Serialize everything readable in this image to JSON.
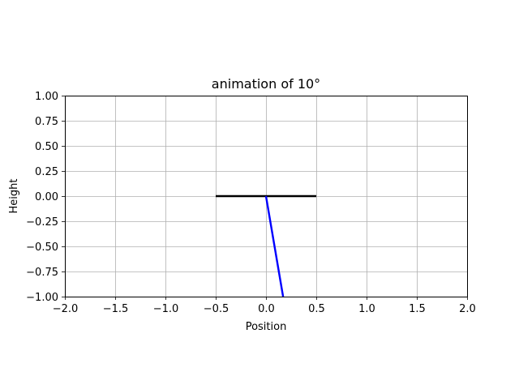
{
  "chart_data": {
    "type": "line",
    "title": "animation of 10°",
    "xlabel": "Position",
    "ylabel": "Height",
    "xlim": [
      -2.0,
      2.0
    ],
    "ylim": [
      -1.0,
      1.0
    ],
    "x_ticks": [
      -2.0,
      -1.5,
      -1.0,
      -0.5,
      0.0,
      0.5,
      1.0,
      1.5,
      2.0
    ],
    "x_tick_labels": [
      "−2.0",
      "−1.5",
      "−1.0",
      "−0.5",
      "0.0",
      "0.5",
      "1.0",
      "1.5",
      "2.0"
    ],
    "y_ticks": [
      1.0,
      0.75,
      0.5,
      0.25,
      0.0,
      -0.25,
      -0.5,
      -0.75,
      -1.0
    ],
    "y_tick_labels": [
      "1.00",
      "0.75",
      "0.50",
      "0.25",
      "0.00",
      "−0.25",
      "−0.50",
      "−0.75",
      "−1.00"
    ],
    "grid": true,
    "series": [
      {
        "color": "#000000",
        "x": [
          -0.5,
          0.5
        ],
        "y": [
          0.0,
          0.0
        ]
      },
      {
        "color": "#0000ff",
        "x": [
          0.0,
          0.17
        ],
        "y": [
          0.0,
          -1.0
        ]
      }
    ]
  }
}
